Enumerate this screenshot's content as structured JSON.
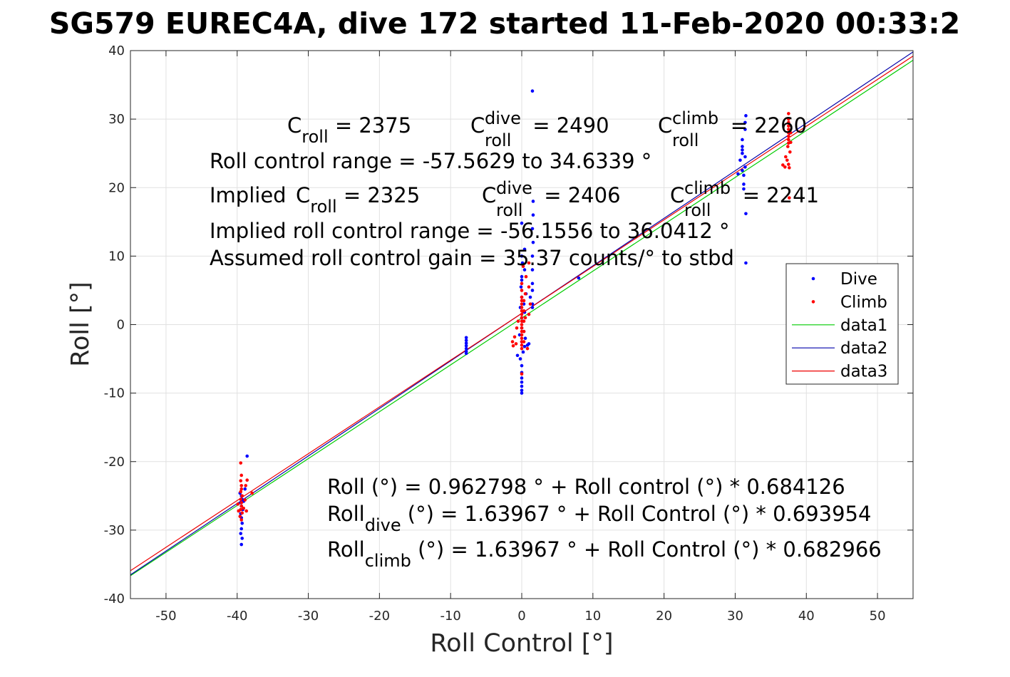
{
  "chart_data": {
    "type": "scatter",
    "title": "SG579 EUREC4A, dive 172 started 11-Feb-2020 00:33:2",
    "xlabel": "Roll Control [°]",
    "ylabel": "Roll [°]",
    "xlim": [
      -55,
      55
    ],
    "ylim": [
      -40,
      40
    ],
    "x_ticks": [
      -50,
      -40,
      -30,
      -20,
      -10,
      0,
      10,
      20,
      30,
      40,
      50
    ],
    "y_ticks": [
      -40,
      -30,
      -20,
      -10,
      0,
      10,
      20,
      30,
      40
    ],
    "grid": true,
    "legend_position": "right",
    "colors": {
      "dive": "#0000ff",
      "climb": "#ff0000",
      "data1": "#00cc00",
      "data2": "#0000aa",
      "data3": "#ee0000"
    },
    "legend": [
      {
        "label": "Dive",
        "kind": "marker",
        "color": "#0000ff"
      },
      {
        "label": "Climb",
        "kind": "marker",
        "color": "#ff0000"
      },
      {
        "label": "data1",
        "kind": "line",
        "color": "#00cc00"
      },
      {
        "label": "data2",
        "kind": "line",
        "color": "#0000aa"
      },
      {
        "label": "data3",
        "kind": "line",
        "color": "#ee0000"
      }
    ],
    "fit_lines": [
      {
        "name": "data1",
        "intercept": 0.962798,
        "slope": 0.684126
      },
      {
        "name": "data2",
        "intercept": 1.63967,
        "slope": 0.693954
      },
      {
        "name": "data3",
        "intercept": 1.63967,
        "slope": 0.682966
      }
    ],
    "series": [
      {
        "name": "Dive",
        "points": [
          [
            -39.6,
            -24.6
          ],
          [
            -39.4,
            -25.0
          ],
          [
            -39.3,
            -25.5
          ],
          [
            -39.5,
            -26.0
          ],
          [
            -39.4,
            -26.5
          ],
          [
            -39.2,
            -27.0
          ],
          [
            -39.5,
            -27.6
          ],
          [
            -39.4,
            -28.2
          ],
          [
            -39.3,
            -29.0
          ],
          [
            -39.4,
            -29.8
          ],
          [
            -39.5,
            -30.5
          ],
          [
            -39.3,
            -31.2
          ],
          [
            -39.4,
            -32.1
          ],
          [
            -38.9,
            -24.0
          ],
          [
            -38.6,
            -19.2
          ],
          [
            -39.1,
            -25.8
          ],
          [
            -7.8,
            -1.9
          ],
          [
            -7.8,
            -2.3
          ],
          [
            -7.8,
            -2.7
          ],
          [
            -7.8,
            -3.1
          ],
          [
            -7.8,
            -3.5
          ],
          [
            -7.8,
            -3.9
          ],
          [
            -7.8,
            -4.2
          ],
          [
            0.0,
            -10.0
          ],
          [
            0.0,
            -9.6
          ],
          [
            0.0,
            -9.0
          ],
          [
            0.0,
            -8.4
          ],
          [
            0.0,
            -7.8
          ],
          [
            0.0,
            -7.0
          ],
          [
            0.0,
            -6.0
          ],
          [
            -0.2,
            -5.0
          ],
          [
            -0.6,
            -4.5
          ],
          [
            0.2,
            -4.0
          ],
          [
            0.4,
            -3.2
          ],
          [
            0.0,
            -2.5
          ],
          [
            0.5,
            -2.0
          ],
          [
            0.8,
            -3.0
          ],
          [
            1.0,
            -2.8
          ],
          [
            -0.3,
            -1.5
          ],
          [
            0.3,
            -1.0
          ],
          [
            0.0,
            -0.5
          ],
          [
            0.2,
            0.5
          ],
          [
            0.0,
            1.0
          ],
          [
            0.4,
            1.8
          ],
          [
            -0.2,
            2.5
          ],
          [
            0.3,
            3.0
          ],
          [
            0.0,
            4.0
          ],
          [
            0.6,
            4.5
          ],
          [
            -0.1,
            5.5
          ],
          [
            0.0,
            6.5
          ],
          [
            0.0,
            7.0
          ],
          [
            0.4,
            8.0
          ],
          [
            0.1,
            9.0
          ],
          [
            0.0,
            10.0
          ],
          [
            0.4,
            11.0
          ],
          [
            1.5,
            2.5
          ],
          [
            1.5,
            3.0
          ],
          [
            1.2,
            4.0
          ],
          [
            1.5,
            5.0
          ],
          [
            1.5,
            6.0
          ],
          [
            1.5,
            8.0
          ],
          [
            1.5,
            10.0
          ],
          [
            1.6,
            12.0
          ],
          [
            1.5,
            14.0
          ],
          [
            1.6,
            16.0
          ],
          [
            1.6,
            18.0
          ],
          [
            1.5,
            34.1
          ],
          [
            0.0,
            14.8
          ],
          [
            8.0,
            6.8
          ],
          [
            30.4,
            22.0
          ],
          [
            30.7,
            24.0
          ],
          [
            31.0,
            25.0
          ],
          [
            31.0,
            25.5
          ],
          [
            31.0,
            26.0
          ],
          [
            31.0,
            22.5
          ],
          [
            31.0,
            27.0
          ],
          [
            31.2,
            21.8
          ],
          [
            31.4,
            23.0
          ],
          [
            31.4,
            24.5
          ],
          [
            31.4,
            28.5
          ],
          [
            31.4,
            29.5
          ],
          [
            31.5,
            30.5
          ],
          [
            31.5,
            16.2
          ],
          [
            31.2,
            19.8
          ],
          [
            31.5,
            9.0
          ],
          [
            31.2,
            20.5
          ]
        ]
      },
      {
        "name": "Climb",
        "points": [
          [
            -39.5,
            -20.2
          ],
          [
            -39.4,
            -22.0
          ],
          [
            -39.5,
            -22.8
          ],
          [
            -39.4,
            -23.5
          ],
          [
            -39.4,
            -24.0
          ],
          [
            -39.5,
            -24.4
          ],
          [
            -39.3,
            -25.0
          ],
          [
            -39.5,
            -25.5
          ],
          [
            -39.4,
            -26.0
          ],
          [
            -39.4,
            -26.5
          ],
          [
            -39.5,
            -27.0
          ],
          [
            -39.3,
            -27.5
          ],
          [
            -39.6,
            -28.0
          ],
          [
            -39.4,
            -28.5
          ],
          [
            -39.8,
            -27.2
          ],
          [
            -39.9,
            -26.2
          ],
          [
            -39.1,
            -26.8
          ],
          [
            -38.8,
            -23.5
          ],
          [
            -38.6,
            -22.7
          ],
          [
            -38.9,
            -25.6
          ],
          [
            -38.7,
            -27.2
          ],
          [
            -37.9,
            -24.6
          ],
          [
            -1.3,
            -2.5
          ],
          [
            -1.2,
            -3.1
          ],
          [
            -1.0,
            -1.8
          ],
          [
            -0.8,
            -2.8
          ],
          [
            -0.7,
            -0.5
          ],
          [
            -0.5,
            0.5
          ],
          [
            0.0,
            -3.5
          ],
          [
            0.0,
            -3.0
          ],
          [
            0.0,
            -2.5
          ],
          [
            0.0,
            -2.0
          ],
          [
            0.0,
            -1.5
          ],
          [
            0.0,
            -1.0
          ],
          [
            0.0,
            -0.5
          ],
          [
            0.0,
            0.0
          ],
          [
            0.0,
            0.5
          ],
          [
            0.0,
            1.0
          ],
          [
            0.0,
            1.5
          ],
          [
            0.0,
            2.0
          ],
          [
            0.0,
            2.5
          ],
          [
            0.0,
            3.0
          ],
          [
            0.0,
            3.5
          ],
          [
            0.0,
            4.0
          ],
          [
            0.0,
            5.0
          ],
          [
            0.0,
            6.0
          ],
          [
            0.3,
            -2.5
          ],
          [
            0.3,
            -1.0
          ],
          [
            0.3,
            0.5
          ],
          [
            0.3,
            2.0
          ],
          [
            0.3,
            3.5
          ],
          [
            0.5,
            1.0
          ],
          [
            0.5,
            4.5
          ],
          [
            0.6,
            7.0
          ],
          [
            0.8,
            -3.5
          ],
          [
            1.0,
            1.5
          ],
          [
            1.2,
            3.0
          ],
          [
            0.2,
            8.5
          ],
          [
            1.0,
            9.0
          ],
          [
            0.0,
            -7.2
          ],
          [
            1.0,
            5.5
          ],
          [
            36.7,
            23.3
          ],
          [
            37.0,
            23.0
          ],
          [
            37.1,
            24.5
          ],
          [
            37.3,
            24.0
          ],
          [
            37.5,
            23.4
          ],
          [
            37.6,
            22.9
          ],
          [
            37.4,
            26.0
          ],
          [
            37.5,
            26.5
          ],
          [
            37.5,
            27.0
          ],
          [
            37.5,
            27.5
          ],
          [
            37.5,
            28.0
          ],
          [
            37.5,
            28.5
          ],
          [
            37.5,
            29.0
          ],
          [
            37.5,
            29.5
          ],
          [
            37.5,
            30.0
          ],
          [
            37.5,
            30.8
          ],
          [
            37.8,
            26.6
          ],
          [
            37.7,
            25.2
          ],
          [
            37.6,
            18.5
          ],
          [
            37.8,
            28.0
          ]
        ]
      }
    ],
    "annotations": {
      "top": [
        {
          "id": "croll",
          "base": "C",
          "sub": "roll",
          "sup": "",
          "rest": " = 2375"
        },
        {
          "id": "croll-dive",
          "base": "C",
          "sub": "roll",
          "sup": "dive",
          "rest": " = 2490"
        },
        {
          "id": "croll-climb",
          "base": "C",
          "sub": "roll",
          "sup": "climb",
          "rest": " = 2260"
        },
        {
          "id": "range",
          "text": "Roll control range = -57.5629 to 34.6339 °"
        },
        {
          "id": "implied-prefix",
          "text": "Implied "
        },
        {
          "id": "implied-croll",
          "base": "C",
          "sub": "roll",
          "sup": "",
          "rest": " = 2325"
        },
        {
          "id": "implied-dive",
          "base": "C",
          "sub": "roll",
          "sup": "dive",
          "rest": " = 2406"
        },
        {
          "id": "implied-climb",
          "base": "C",
          "sub": "roll",
          "sup": "climb",
          "rest": " = 2241"
        },
        {
          "id": "implied-range",
          "text": "Implied roll control range = -56.1556 to 36.0412 °"
        },
        {
          "id": "gain",
          "text": "Assumed roll control gain = 35.37 counts/° to stbd"
        }
      ],
      "equations": [
        {
          "id": "eq-all",
          "text": "Roll (°) = 0.962798 ° + Roll control (°) * 0.684126"
        },
        {
          "id": "eq-dive",
          "base": "Roll",
          "sub": "dive",
          "rest": " (°) = 1.63967 ° + Roll Control (°) * 0.693954"
        },
        {
          "id": "eq-climb",
          "base": "Roll",
          "sub": "climb",
          "rest": " (°) = 1.63967 ° + Roll Control (°) * 0.682966"
        }
      ]
    }
  }
}
